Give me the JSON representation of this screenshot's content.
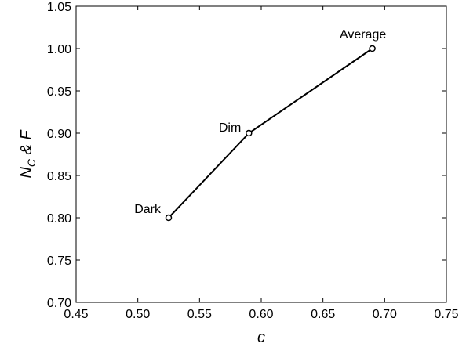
{
  "chart_data": {
    "type": "line",
    "title": "",
    "xlabel": "c",
    "ylabel": "N_C & F",
    "xlim": [
      0.45,
      0.75
    ],
    "ylim": [
      0.7,
      1.05
    ],
    "xticks": [
      "0.45",
      "0.50",
      "0.55",
      "0.60",
      "0.65",
      "0.70",
      "0.75"
    ],
    "yticks": [
      "0.70",
      "0.75",
      "0.80",
      "0.85",
      "0.90",
      "0.95",
      "1.00",
      "1.05"
    ],
    "grid": false,
    "legend": "none",
    "series": [
      {
        "x": [
          0.525,
          0.59,
          0.69
        ],
        "y": [
          0.8,
          0.9,
          1.0
        ],
        "labels": [
          "Dark",
          "Dim",
          "Average"
        ],
        "color": "#000000",
        "marker": "open-circle"
      }
    ]
  }
}
